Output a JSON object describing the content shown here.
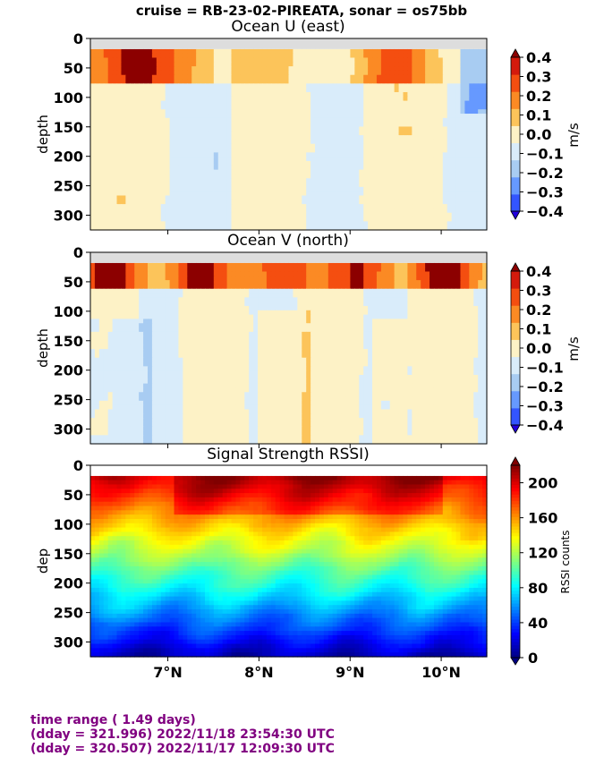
{
  "suptitle": "cruise = RB-23-02-PIREATA,  sonar = os75bb",
  "footer": {
    "line1": "time range ( 1.49 days)",
    "line2": "(dday = 321.996) 2022/11/18 23:54:30 UTC",
    "line3": "(dday = 320.507) 2022/11/17 12:09:30 UTC"
  },
  "chart_data": [
    {
      "type": "heatmap",
      "title": "Ocean U (east)",
      "ylabel": "depth",
      "colorbar_label": "m/s",
      "colorbar_ticks": [
        "0.4",
        "0.3",
        "0.2",
        "0.1",
        "0.0",
        "−0.1",
        "−0.2",
        "−0.3",
        "−0.4"
      ],
      "colorbar_levels": [
        -0.4,
        -0.3,
        -0.2,
        -0.1,
        0.0,
        0.1,
        0.2,
        0.3,
        0.4
      ],
      "colorbar_colors": [
        "#2200dd",
        "#3355ff",
        "#6699ff",
        "#a8ccf2",
        "#d9ecfa",
        "#fdf2c6",
        "#fcc45a",
        "#fb8a24",
        "#f44e10",
        "#d41a0c",
        "#8c0000"
      ],
      "xlim": [
        6.15,
        10.5
      ],
      "ylim": [
        325,
        0
      ],
      "y_ticks": [
        "0",
        "50",
        "100",
        "150",
        "200",
        "250",
        "300"
      ],
      "y_tick_values": [
        0,
        50,
        100,
        150,
        200,
        250,
        300
      ],
      "x_tick_values": [
        7,
        8,
        9,
        10
      ],
      "x_tick_labels": [
        "",
        "",
        "",
        ""
      ],
      "no_data_band_depth": [
        0,
        18
      ]
    },
    {
      "type": "heatmap",
      "title": "Ocean V (north)",
      "ylabel": "depth",
      "colorbar_label": "m/s",
      "colorbar_ticks": [
        "0.4",
        "0.3",
        "0.2",
        "0.1",
        "0.0",
        "−0.1",
        "−0.2",
        "−0.3",
        "−0.4"
      ],
      "colorbar_levels": [
        -0.4,
        -0.3,
        -0.2,
        -0.1,
        0.0,
        0.1,
        0.2,
        0.3,
        0.4
      ],
      "colorbar_colors": [
        "#2200dd",
        "#3355ff",
        "#6699ff",
        "#a8ccf2",
        "#d9ecfa",
        "#fdf2c6",
        "#fcc45a",
        "#fb8a24",
        "#f44e10",
        "#d41a0c",
        "#8c0000"
      ],
      "xlim": [
        6.15,
        10.5
      ],
      "ylim": [
        325,
        0
      ],
      "y_ticks": [
        "0",
        "50",
        "100",
        "150",
        "200",
        "250",
        "300"
      ],
      "y_tick_values": [
        0,
        50,
        100,
        150,
        200,
        250,
        300
      ],
      "x_tick_values": [
        7,
        8,
        9,
        10
      ],
      "x_tick_labels": [
        "",
        "",
        "",
        ""
      ],
      "no_data_band_depth": [
        0,
        18
      ]
    },
    {
      "type": "heatmap",
      "title": "Signal Strength RSSI)",
      "ylabel": "dep",
      "colorbar_label": "RSSI counts",
      "colorbar_ticks": [
        "200",
        "160",
        "120",
        "80",
        "40",
        "0"
      ],
      "colorbar_range": [
        0,
        220
      ],
      "xlim": [
        6.15,
        10.5
      ],
      "ylim": [
        325,
        0
      ],
      "y_ticks": [
        "0",
        "50",
        "100",
        "150",
        "200",
        "250",
        "300"
      ],
      "y_tick_values": [
        0,
        50,
        100,
        150,
        200,
        250,
        300
      ],
      "x_tick_values": [
        7,
        8,
        9,
        10
      ],
      "x_tick_labels": [
        "7°N",
        "8°N",
        "9°N",
        "10°N"
      ],
      "no_data_band_depth": [
        0,
        18
      ]
    }
  ]
}
